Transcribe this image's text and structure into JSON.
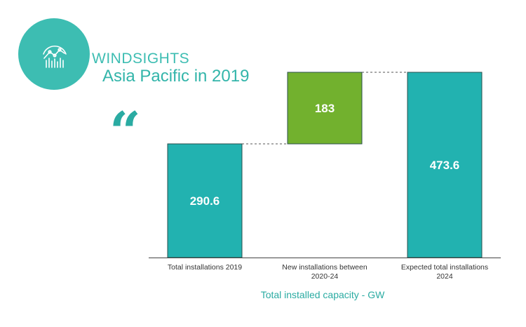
{
  "header": {
    "brand": "WINDSIGHTS",
    "subtitle": "Asia Pacific in 2019",
    "quote_glyph": "“",
    "logo_icon": "chart-analytics-icon"
  },
  "colors": {
    "accent": "#3dbdb2",
    "total_bar": "#22b2b0",
    "increase_bar": "#72b12e",
    "title_text": "#2aaba2"
  },
  "chart_data": {
    "type": "bar",
    "subtype": "waterfall",
    "categories": [
      "Total installations 2019",
      "New installations between 2020-24",
      "Expected total installations 2024"
    ],
    "category_lines": [
      [
        "Total installations 2019"
      ],
      [
        "New installations between",
        "2020-24"
      ],
      [
        "Expected total installations",
        "2024"
      ]
    ],
    "values": [
      290.6,
      183,
      473.6
    ],
    "value_labels": [
      "290.6",
      "183",
      "473.6"
    ],
    "bar_kinds": [
      "total",
      "increase",
      "total"
    ],
    "xlabel": "Total installed capacity - GW",
    "ylabel": "",
    "ylim": [
      0,
      473.6
    ],
    "grid": false,
    "connectors": true
  }
}
